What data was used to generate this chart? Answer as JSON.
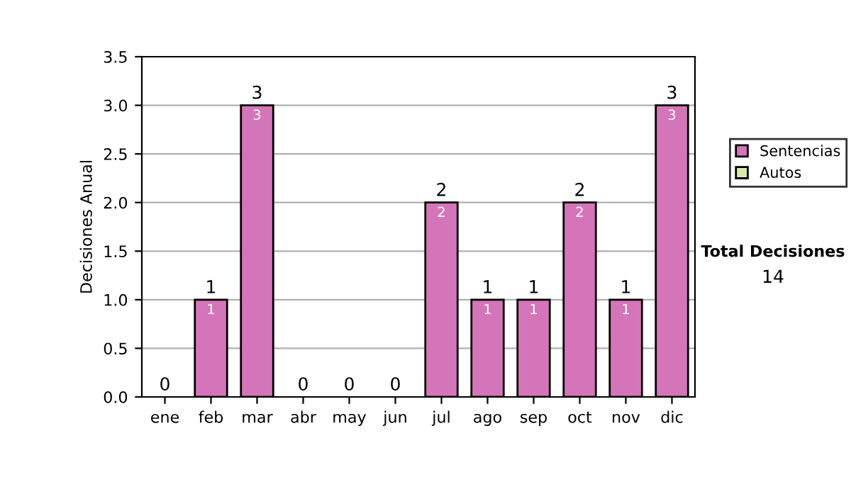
{
  "chart_data": {
    "type": "bar",
    "stacked": true,
    "ylabel": "Decisiones Anual",
    "categories": [
      "ene",
      "feb",
      "mar",
      "abr",
      "may",
      "jun",
      "jul",
      "ago",
      "sep",
      "oct",
      "nov",
      "dic"
    ],
    "series": [
      {
        "name": "Sentencias",
        "color": "#d575b9",
        "values": [
          0,
          1,
          3,
          0,
          0,
          0,
          2,
          1,
          1,
          2,
          1,
          3
        ],
        "value_labels": [
          null,
          "1",
          "3",
          null,
          null,
          null,
          "2",
          "1",
          "1",
          "2",
          "1",
          "3"
        ]
      },
      {
        "name": "Autos",
        "color": "#d9eaa8",
        "values": [
          0,
          0,
          0,
          0,
          0,
          0,
          0,
          0,
          0,
          0,
          0,
          0
        ]
      }
    ],
    "totals": [
      "0",
      "1",
      "3",
      "0",
      "0",
      "0",
      "2",
      "1",
      "1",
      "2",
      "1",
      "3"
    ],
    "ylim": [
      0,
      3.5
    ],
    "yticks": [
      {
        "value": 0,
        "label": "0.0"
      },
      {
        "value": 0.5,
        "label": "0.5"
      },
      {
        "value": 1,
        "label": "1.0"
      },
      {
        "value": 1.5,
        "label": "1.5"
      },
      {
        "value": 2,
        "label": "2.0"
      },
      {
        "value": 2.5,
        "label": "2.5"
      },
      {
        "value": 3,
        "label": "3.0"
      },
      {
        "value": 3.5,
        "label": "3.5"
      }
    ],
    "grid": "y",
    "legend": "right",
    "annotations": [
      "Total Decisiones",
      "14"
    ]
  }
}
